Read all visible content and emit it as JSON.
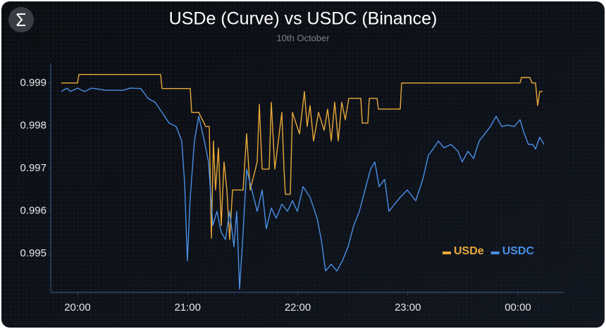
{
  "chart_data": {
    "type": "line",
    "title": "USDe (Curve) vs USDC (Binance)",
    "subtitle": "10th October",
    "xlim": [
      19.757,
      24.416
    ],
    "ylim": [
      0.99409,
      0.99946
    ],
    "xticks": [
      {
        "value": 20,
        "label": "20:00"
      },
      {
        "value": 21,
        "label": "21:00"
      },
      {
        "value": 22,
        "label": "22:00"
      },
      {
        "value": 23,
        "label": "23:00"
      },
      {
        "value": 24,
        "label": "00:00"
      }
    ],
    "yticks": [
      0.995,
      0.996,
      0.997,
      0.998,
      0.999
    ],
    "grid": false,
    "legend": "lower right",
    "series": [
      {
        "name": "USDe",
        "color": "#e8a93a",
        "x": [
          19.853,
          20.0,
          20.013,
          20.755,
          20.768,
          21.024,
          21.037,
          21.101,
          21.165,
          21.197,
          21.216,
          21.235,
          21.254,
          21.28,
          21.306,
          21.331,
          21.357,
          21.382,
          21.408,
          21.504,
          21.536,
          21.568,
          21.632,
          21.651,
          21.677,
          21.741,
          21.76,
          21.792,
          21.856,
          21.875,
          21.888,
          21.933,
          21.952,
          22.016,
          22.061,
          22.086,
          22.112,
          22.144,
          22.189,
          22.24,
          22.272,
          22.304,
          22.336,
          22.368,
          22.4,
          22.432,
          22.464,
          22.573,
          22.586,
          22.637,
          22.65,
          22.72,
          22.733,
          22.931,
          22.944,
          24.019,
          24.032,
          24.109,
          24.128,
          24.16,
          24.179,
          24.198,
          24.224
        ],
        "values": [
          0.999,
          0.999,
          0.9992,
          0.9992,
          0.99887,
          0.99887,
          0.99831,
          0.99831,
          0.99798,
          0.99798,
          0.99536,
          0.99764,
          0.99649,
          0.99748,
          0.99566,
          0.99715,
          0.99649,
          0.99533,
          0.99649,
          0.99649,
          0.99781,
          0.99649,
          0.99715,
          0.9985,
          0.99698,
          0.99698,
          0.99855,
          0.99698,
          0.99831,
          0.99698,
          0.99639,
          0.99639,
          0.99831,
          0.99781,
          0.9988,
          0.99798,
          0.99847,
          0.99764,
          0.99831,
          0.99789,
          0.99839,
          0.99764,
          0.99855,
          0.99764,
          0.99855,
          0.99814,
          0.99864,
          0.99864,
          0.99806,
          0.99806,
          0.99864,
          0.99864,
          0.99839,
          0.99839,
          0.999,
          0.999,
          0.99913,
          0.99913,
          0.999,
          0.999,
          0.99847,
          0.9988,
          0.9988
        ]
      },
      {
        "name": "USDC",
        "color": "#4a8fe6",
        "x": [
          19.853,
          19.904,
          19.936,
          20.0,
          20.064,
          20.128,
          20.256,
          20.416,
          20.48,
          20.576,
          20.64,
          20.704,
          20.768,
          20.832,
          20.896,
          20.947,
          20.973,
          20.998,
          21.024,
          21.062,
          21.101,
          21.152,
          21.19,
          21.229,
          21.267,
          21.306,
          21.344,
          21.382,
          21.421,
          21.446,
          21.472,
          21.504,
          21.536,
          21.568,
          21.632,
          21.677,
          21.715,
          21.76,
          21.805,
          21.856,
          21.907,
          21.952,
          21.997,
          22.048,
          22.112,
          22.176,
          22.214,
          22.253,
          22.304,
          22.355,
          22.406,
          22.458,
          22.509,
          22.56,
          22.611,
          22.662,
          22.701,
          22.739,
          22.79,
          22.829,
          22.88,
          22.931,
          22.995,
          23.072,
          23.136,
          23.187,
          23.238,
          23.277,
          23.328,
          23.392,
          23.456,
          23.494,
          23.546,
          23.597,
          23.648,
          23.699,
          23.75,
          23.802,
          23.853,
          23.904,
          23.968,
          24.019,
          24.058,
          24.096,
          24.134,
          24.16,
          24.198,
          24.237
        ],
        "values": [
          0.9988,
          0.99888,
          0.9988,
          0.99888,
          0.9988,
          0.99888,
          0.99883,
          0.99883,
          0.99888,
          0.99887,
          0.99864,
          0.99855,
          0.99831,
          0.99806,
          0.99798,
          0.99764,
          0.99665,
          0.99483,
          0.99632,
          0.99764,
          0.99822,
          0.99764,
          0.99715,
          0.99566,
          0.99599,
          0.9955,
          0.99533,
          0.99599,
          0.99516,
          0.99599,
          0.99417,
          0.9955,
          0.99698,
          0.99665,
          0.99599,
          0.99649,
          0.99558,
          0.99607,
          0.99583,
          0.99616,
          0.99599,
          0.99624,
          0.99599,
          0.99657,
          0.99632,
          0.99583,
          0.99533,
          0.99459,
          0.99475,
          0.99459,
          0.99483,
          0.99516,
          0.99566,
          0.99599,
          0.99649,
          0.99698,
          0.99715,
          0.99657,
          0.99674,
          0.99599,
          0.99616,
          0.99632,
          0.99649,
          0.99624,
          0.99674,
          0.99731,
          0.99748,
          0.99764,
          0.99748,
          0.99756,
          0.9974,
          0.99715,
          0.9974,
          0.99723,
          0.99764,
          0.99781,
          0.99798,
          0.99822,
          0.99798,
          0.99801,
          0.99798,
          0.99814,
          0.99781,
          0.99756,
          0.99756,
          0.99745,
          0.99773,
          0.99756
        ]
      }
    ]
  }
}
